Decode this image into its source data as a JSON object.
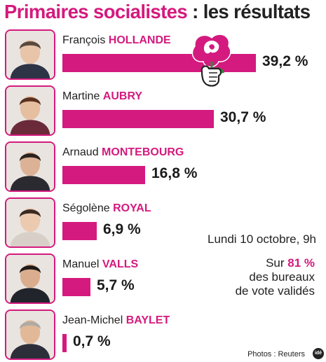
{
  "title": {
    "part1": "Primaires socialistes",
    "sep": " : ",
    "part2": "les résultats"
  },
  "notes": {
    "date": "Lundi 10 octobre, 9h",
    "bureaux_prefix": "Sur ",
    "bureaux_pct": "81 %",
    "bureaux_line2": "des bureaux",
    "bureaux_line3": "de vote validés"
  },
  "credit": "Photos : Reuters",
  "logo_text": "idé",
  "colors": {
    "accent": "#d41a7e",
    "text": "#222222",
    "background": "#ffffff"
  },
  "chart_data": {
    "type": "bar",
    "orientation": "horizontal",
    "title": "Primaires socialistes : les résultats",
    "categories": [
      "François HOLLANDE",
      "Martine AUBRY",
      "Arnaud MONTEBOURG",
      "Ségolène ROYAL",
      "Manuel VALLS",
      "Jean-Michel BAYLET"
    ],
    "series": [
      {
        "values": [
          39.2,
          30.7,
          16.8,
          6.9,
          5.7,
          0.7
        ]
      }
    ],
    "candidates": [
      {
        "first": "François",
        "last": "HOLLANDE",
        "value": 39.2,
        "label": "39,2 %",
        "photo": "hollande-portrait"
      },
      {
        "first": "Martine",
        "last": "AUBRY",
        "value": 30.7,
        "label": "30,7 %",
        "photo": "aubry-portrait"
      },
      {
        "first": "Arnaud",
        "last": "MONTEBOURG",
        "value": 16.8,
        "label": "16,8  %",
        "photo": "montebourg-portrait"
      },
      {
        "first": "Ségolène",
        "last": "ROYAL",
        "value": 6.9,
        "label": "6,9 %",
        "photo": "royal-portrait"
      },
      {
        "first": "Manuel",
        "last": "VALLS",
        "value": 5.7,
        "label": "5,7 %",
        "photo": "valls-portrait"
      },
      {
        "first": "Jean-Michel",
        "last": "BAYLET",
        "value": 0.7,
        "label": "0,7 %",
        "photo": "baylet-portrait"
      }
    ],
    "xlabel": "",
    "ylabel": "",
    "xlim": [
      0,
      39.2
    ],
    "grid": false,
    "legend": "none"
  }
}
